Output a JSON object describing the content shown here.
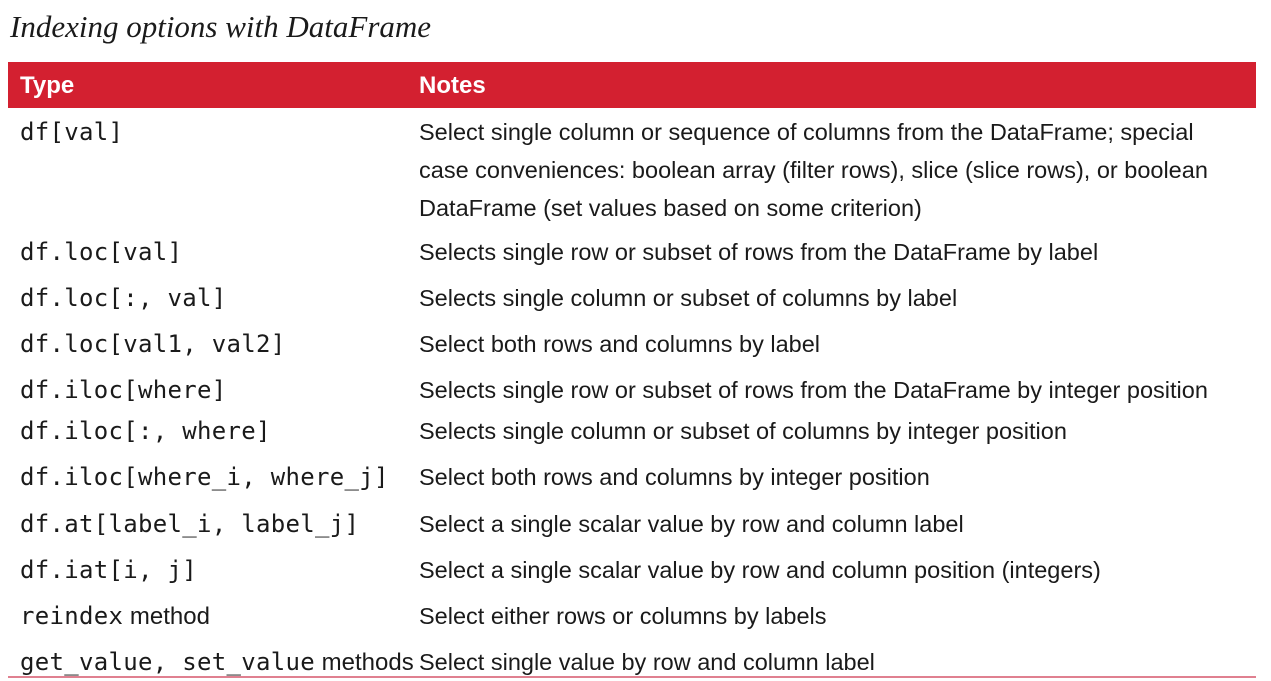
{
  "caption": "Indexing options with DataFrame",
  "table": {
    "headers": {
      "type": "Type",
      "notes": "Notes"
    },
    "rows": [
      {
        "code": "df[val]",
        "suffix": "",
        "notes": "Select single column or sequence of columns from the DataFrame; special case conveniences: boolean array (filter rows), slice (slice rows), or boolean DataFrame (set values based on some criterion)"
      },
      {
        "code": "df.loc[val]",
        "suffix": "",
        "notes": "Selects single row or subset of rows from the DataFrame by label"
      },
      {
        "code": "df.loc[:, val]",
        "suffix": "",
        "notes": "Selects single column or subset of columns by label"
      },
      {
        "code": "df.loc[val1, val2]",
        "suffix": "",
        "notes": "Select both rows and columns by label"
      },
      {
        "code": "df.iloc[where]",
        "suffix": "",
        "notes": "Selects single row or subset of rows from the DataFrame by integer position"
      },
      {
        "code": "df.iloc[:, where]",
        "suffix": "",
        "notes": "Selects single column or subset of columns by integer position"
      },
      {
        "code": "df.iloc[where_i, where_j]",
        "suffix": "",
        "notes": "Select both rows and columns by integer position"
      },
      {
        "code": "df.at[label_i, label_j]",
        "suffix": "",
        "notes": "Select a single scalar value by row and column label"
      },
      {
        "code": "df.iat[i, j]",
        "suffix": "",
        "notes": "Select a single scalar value by row and column position (integers)"
      },
      {
        "code": "reindex",
        "suffix": " method",
        "notes": "Select either rows or columns by labels"
      },
      {
        "code": "get_value, set_value",
        "suffix": " methods",
        "notes": "Select single value by row and column label"
      }
    ]
  },
  "colors": {
    "header_bg": "#d32030",
    "header_text": "#ffffff",
    "bottom_rule": "#e08090"
  }
}
